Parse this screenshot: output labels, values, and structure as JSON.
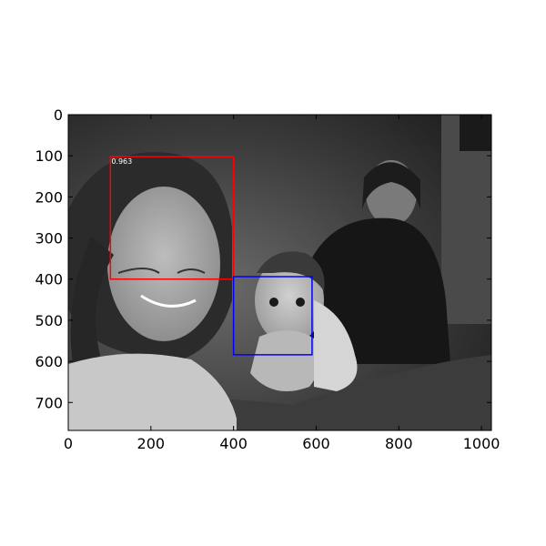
{
  "chart_data": {
    "type": "image",
    "image": {
      "description_icon": "photo-icon",
      "mode": "grayscale"
    },
    "xlim": [
      0,
      1024
    ],
    "ylim": [
      768,
      0
    ],
    "x_ticks": [
      0,
      200,
      400,
      600,
      800,
      1000
    ],
    "y_ticks": [
      0,
      100,
      200,
      300,
      400,
      500,
      600,
      700
    ],
    "boxes": [
      {
        "x0": 102,
        "y0": 102,
        "x1": 400,
        "y1": 400,
        "color": "#ff0000",
        "label": "0.963"
      },
      {
        "x0": 400,
        "y0": 394,
        "x1": 590,
        "y1": 584,
        "color": "#0000ff",
        "label": ""
      }
    ],
    "title": "",
    "xlabel": "",
    "ylabel": ""
  }
}
